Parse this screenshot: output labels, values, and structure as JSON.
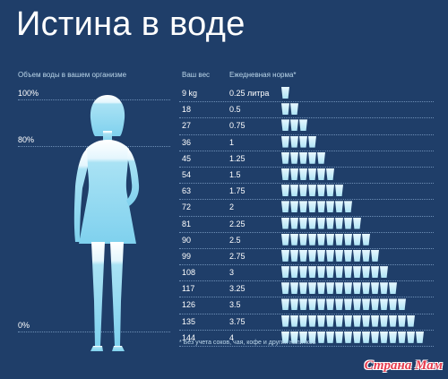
{
  "title": "Истина в воде",
  "left_column_header": "Объем воды в вашем организме",
  "percent_labels": [
    "100%",
    "80%",
    "0%"
  ],
  "table": {
    "weight_header": "Ваш вес",
    "norm_header": "Ежедневная норма*",
    "rows": [
      {
        "weight": "9 kg",
        "norm": "0.25 литра",
        "cups": 1
      },
      {
        "weight": "18",
        "norm": "0.5",
        "cups": 2
      },
      {
        "weight": "27",
        "norm": "0.75",
        "cups": 3
      },
      {
        "weight": "36",
        "norm": "1",
        "cups": 4
      },
      {
        "weight": "45",
        "norm": "1.25",
        "cups": 5
      },
      {
        "weight": "54",
        "norm": "1.5",
        "cups": 6
      },
      {
        "weight": "63",
        "norm": "1.75",
        "cups": 7
      },
      {
        "weight": "72",
        "norm": "2",
        "cups": 8
      },
      {
        "weight": "81",
        "norm": "2.25",
        "cups": 9
      },
      {
        "weight": "90",
        "norm": "2.5",
        "cups": 10
      },
      {
        "weight": "99",
        "norm": "2.75",
        "cups": 11
      },
      {
        "weight": "108",
        "norm": "3",
        "cups": 12
      },
      {
        "weight": "117",
        "norm": "3.25",
        "cups": 13
      },
      {
        "weight": "126",
        "norm": "3.5",
        "cups": 14
      },
      {
        "weight": "135",
        "norm": "3.75",
        "cups": 15
      },
      {
        "weight": "144",
        "norm": "4",
        "cups": 16
      }
    ]
  },
  "footnote": "* Без учета соков, чая, кофе и других напитков",
  "watermark": "Страна Мам",
  "colors": {
    "background": "#1f3e69",
    "water": "#aee4f5",
    "silhouette": "#e9f8ff",
    "watermark": "#e53b4e"
  }
}
